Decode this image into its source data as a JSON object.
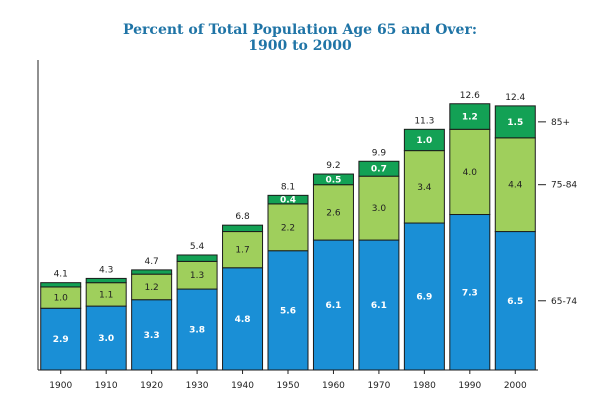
{
  "chart_data": {
    "type": "bar",
    "stacked": true,
    "title": "Percent of Total Population Age 65 and Over:",
    "subtitle": "1900 to 2000",
    "categories": [
      "1900",
      "1910",
      "1920",
      "1930",
      "1940",
      "1950",
      "1960",
      "1970",
      "1980",
      "1990",
      "2000"
    ],
    "series": [
      {
        "name": "65-74",
        "values": [
          2.9,
          3.0,
          3.3,
          3.8,
          4.8,
          5.6,
          6.1,
          6.1,
          6.9,
          7.3,
          6.5
        ],
        "labels": [
          "2.9",
          "3.0",
          "3.3",
          "3.8",
          "4.8",
          "5.6",
          "6.1",
          "6.1",
          "6.9",
          "7.3",
          "6.5"
        ],
        "color": "#1a8fd6"
      },
      {
        "name": "75-84",
        "values": [
          1.0,
          1.1,
          1.2,
          1.3,
          1.7,
          2.2,
          2.6,
          3.0,
          3.4,
          4.0,
          4.4
        ],
        "labels": [
          "1.0",
          "1.1",
          "1.2",
          "1.3",
          "1.7",
          "2.2",
          "2.6",
          "3.0",
          "3.4",
          "4.0",
          "4.4"
        ],
        "color": "#9fcf5c"
      },
      {
        "name": "85+",
        "values": [
          0.2,
          0.2,
          0.2,
          0.3,
          0.3,
          0.4,
          0.5,
          0.7,
          1.0,
          1.2,
          1.5
        ],
        "labels": [
          "",
          "",
          "",
          "",
          "",
          "0.4",
          "0.5",
          "0.7",
          "1.0",
          "1.2",
          "1.5"
        ],
        "color": "#13a155"
      }
    ],
    "totals": [
      "4.1",
      "4.3",
      "4.7",
      "5.4",
      "6.8",
      "8.1",
      "9.2",
      "9.9",
      "11.3",
      "12.6",
      "12.4"
    ],
    "ylim": [
      0,
      13
    ],
    "legend": "right"
  }
}
